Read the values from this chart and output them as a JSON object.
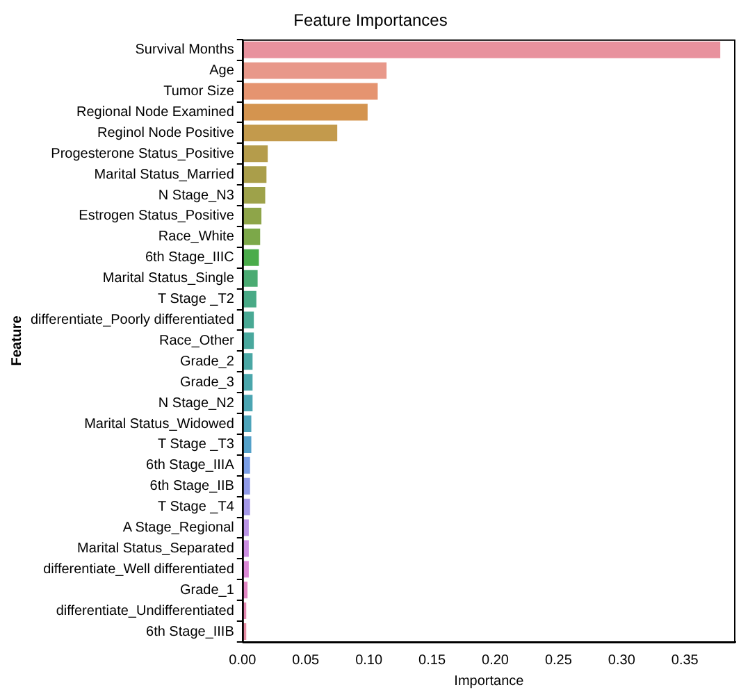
{
  "chart_data": {
    "type": "bar",
    "orientation": "horizontal",
    "title": "Feature Importances",
    "xlabel": "Importance",
    "ylabel": "Feature",
    "categories": [
      "Survival Months",
      "Age",
      "Tumor Size",
      "Regional Node Examined",
      "Reginol Node Positive",
      "Progesterone Status_Positive",
      "Marital Status_Married",
      "N Stage_N3",
      "Estrogen Status_Positive",
      "Race_White",
      "6th Stage_IIIC",
      "Marital Status_Single",
      "T Stage _T2",
      "differentiate_Poorly differentiated",
      "Race_Other",
      "Grade_2",
      "Grade_3",
      "N Stage_N2",
      "Marital Status_Widowed",
      "T Stage _T3",
      "6th Stage_IIIA",
      "6th Stage_IIB",
      "T Stage _T4",
      "A Stage_Regional",
      "Marital Status_Separated",
      "differentiate_Well differentiated",
      "Grade_1",
      "differentiate_Undifferentiated",
      "6th Stage_IIIB"
    ],
    "values": [
      0.378,
      0.114,
      0.107,
      0.099,
      0.075,
      0.02,
      0.019,
      0.018,
      0.015,
      0.014,
      0.013,
      0.012,
      0.011,
      0.009,
      0.009,
      0.008,
      0.008,
      0.008,
      0.007,
      0.007,
      0.006,
      0.006,
      0.006,
      0.005,
      0.005,
      0.005,
      0.004,
      0.003,
      0.003
    ],
    "colors": [
      "#e8929e",
      "#e8988a",
      "#e59470",
      "#d4944f",
      "#c39a4c",
      "#b59c4b",
      "#aa9e4a",
      "#9ea24a",
      "#8ea549",
      "#7ca849",
      "#4aac4a",
      "#4aab72",
      "#49aa86",
      "#49a994",
      "#49a89d",
      "#4aa7a4",
      "#4aa6ab",
      "#4ba5b2",
      "#4da4ba",
      "#54a1c9",
      "#7a9ee6",
      "#909ae8",
      "#a598e8",
      "#bb94e6",
      "#cc8ee2",
      "#db88d6",
      "#e287c4",
      "#e489b2",
      "#e68ca3"
    ],
    "xlim": [
      0,
      0.39
    ],
    "xticks": [
      {
        "value": 0,
        "label": "0.00"
      },
      {
        "value": 0.05,
        "label": "0.05"
      },
      {
        "value": 0.1,
        "label": "0.10"
      },
      {
        "value": 0.15,
        "label": "0.15"
      },
      {
        "value": 0.2,
        "label": "0.20"
      },
      {
        "value": 0.25,
        "label": "0.25"
      },
      {
        "value": 0.3,
        "label": "0.30"
      },
      {
        "value": 0.35,
        "label": "0.35"
      }
    ],
    "grid": false,
    "legend": false
  }
}
